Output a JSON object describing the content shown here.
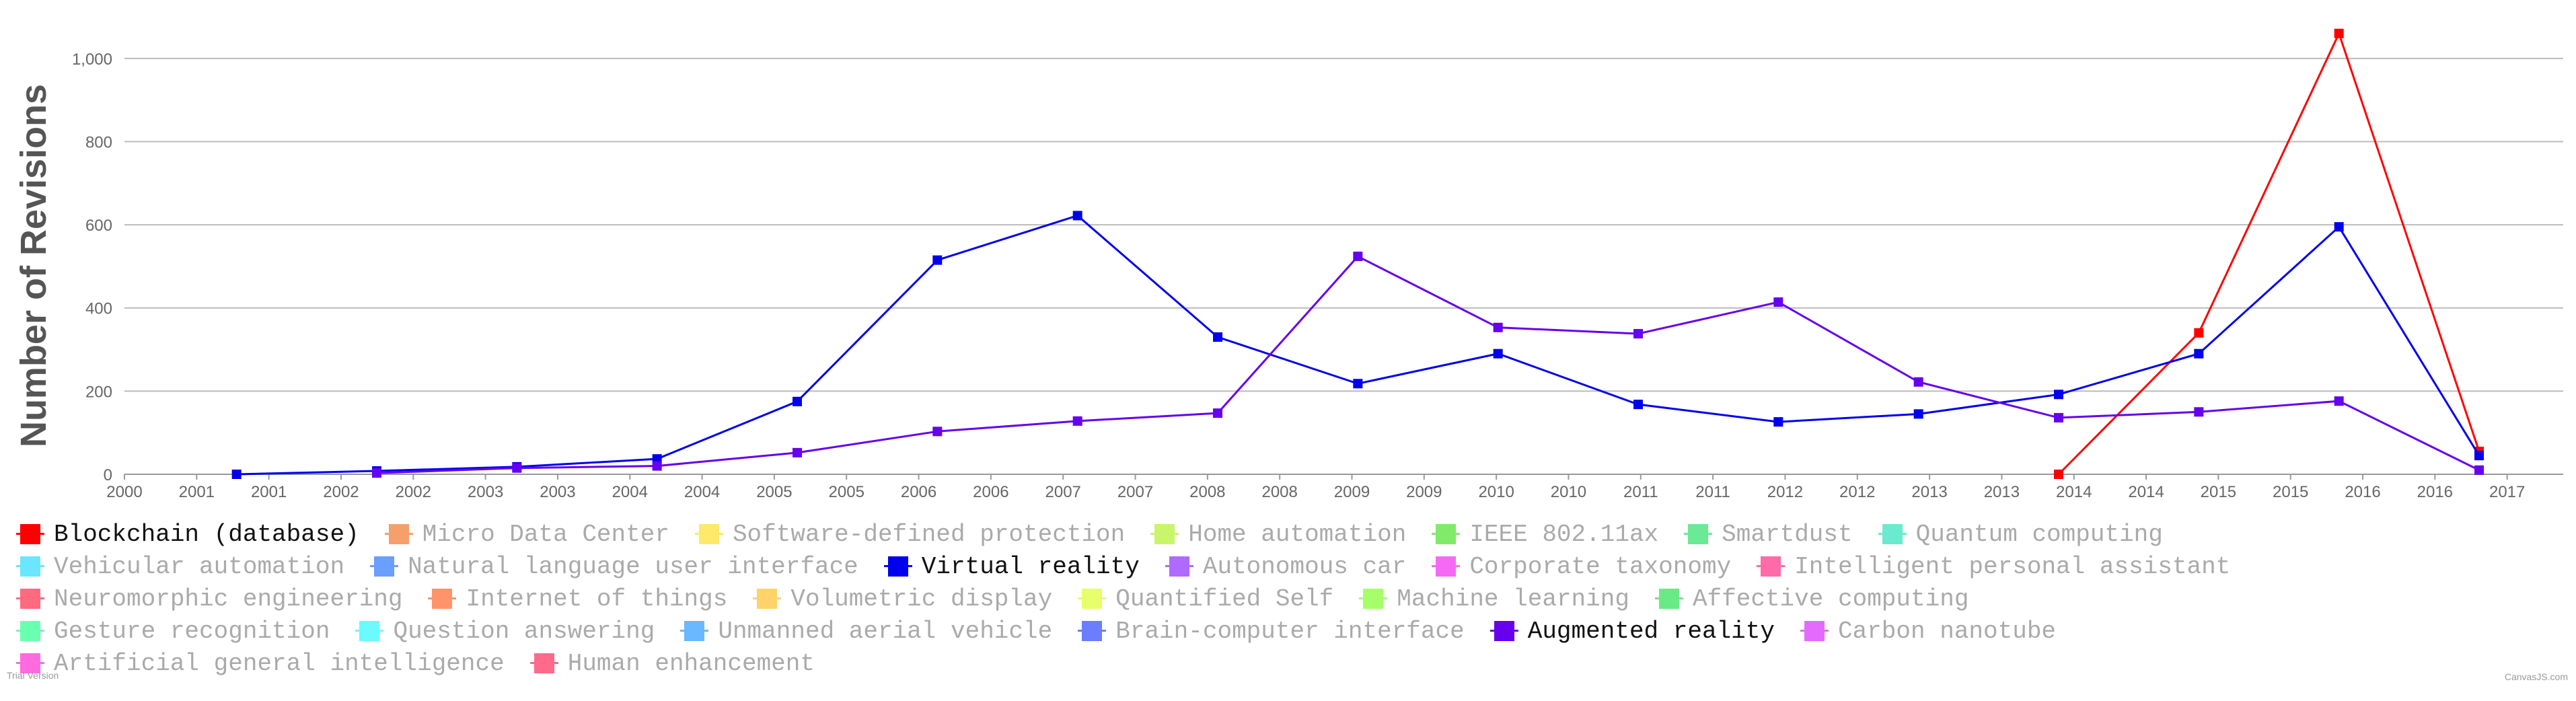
{
  "chart_data": {
    "type": "line",
    "ylabel": "Number of Revisions",
    "xlabel": "",
    "x_tick_labels": [
      "2000",
      "2001",
      "2001",
      "2002",
      "2002",
      "2003",
      "2003",
      "2004",
      "2004",
      "2005",
      "2005",
      "2006",
      "2006",
      "2007",
      "2007",
      "2008",
      "2008",
      "2009",
      "2009",
      "2010",
      "2010",
      "2011",
      "2011",
      "2012",
      "2012",
      "2013",
      "2013",
      "2014",
      "2014",
      "2015",
      "2015",
      "2016",
      "2016",
      "2017"
    ],
    "y_ticks": [
      0,
      200,
      400,
      600,
      800,
      1000
    ],
    "y_tick_labels": [
      "0",
      "200",
      "400",
      "600",
      "800",
      "1,000"
    ],
    "ylim": [
      0,
      1100
    ],
    "x_domain": [
      2000.0,
      2017.4
    ],
    "grid": true,
    "legend_position": "bottom",
    "series": [
      {
        "name": "Blockchain (database)",
        "color": "#ff0000",
        "points": [
          [
            2013.8,
            0
          ],
          [
            2014.8,
            340
          ],
          [
            2015.8,
            1060
          ],
          [
            2016.8,
            55
          ]
        ]
      },
      {
        "name": "Virtual reality",
        "color": "#0000ee",
        "points": [
          [
            2000.8,
            0
          ],
          [
            2001.8,
            8
          ],
          [
            2002.8,
            18
          ],
          [
            2003.8,
            37
          ],
          [
            2004.8,
            175
          ],
          [
            2005.8,
            515
          ],
          [
            2006.8,
            622
          ],
          [
            2007.8,
            330
          ],
          [
            2008.8,
            218
          ],
          [
            2009.8,
            290
          ],
          [
            2010.8,
            168
          ],
          [
            2011.8,
            126
          ],
          [
            2012.8,
            145
          ],
          [
            2013.8,
            192
          ],
          [
            2014.8,
            290
          ],
          [
            2015.8,
            595
          ],
          [
            2016.8,
            45
          ]
        ]
      },
      {
        "name": "Augmented reality",
        "color": "#6600ee",
        "points": [
          [
            2001.8,
            3
          ],
          [
            2002.8,
            15
          ],
          [
            2003.8,
            20
          ],
          [
            2004.8,
            52
          ],
          [
            2005.8,
            103
          ],
          [
            2006.8,
            128
          ],
          [
            2007.8,
            147
          ],
          [
            2008.8,
            524
          ],
          [
            2009.8,
            353
          ],
          [
            2010.8,
            338
          ],
          [
            2011.8,
            414
          ],
          [
            2012.8,
            222
          ],
          [
            2013.8,
            136
          ],
          [
            2014.8,
            150
          ],
          [
            2015.8,
            176
          ],
          [
            2016.8,
            10
          ]
        ]
      }
    ]
  },
  "legend": {
    "rows": [
      [
        {
          "label": "Blockchain (database)",
          "color": "#ff0000",
          "active": true
        },
        {
          "label": "Micro Data Center",
          "color": "#f5a06a",
          "active": false
        },
        {
          "label": "Software-defined protection",
          "color": "#ffe86a",
          "active": false
        },
        {
          "label": "Home automation",
          "color": "#c8f56a",
          "active": false
        },
        {
          "label": "IEEE 802.11ax",
          "color": "#82ea6a",
          "active": false
        },
        {
          "label": "Smartdust",
          "color": "#6aea96",
          "active": false
        },
        {
          "label": "Quantum computing",
          "color": "#6aeace",
          "active": false
        }
      ],
      [
        {
          "label": "Vehicular automation",
          "color": "#6ae6ff",
          "active": false
        },
        {
          "label": "Natural language user interface",
          "color": "#6a9eff",
          "active": false
        },
        {
          "label": "Virtual reality",
          "color": "#0000ee",
          "active": true
        },
        {
          "label": "Autonomous car",
          "color": "#b06aff",
          "active": false
        },
        {
          "label": "Corporate taxonomy",
          "color": "#f56af5",
          "active": false
        },
        {
          "label": "Intelligent personal assistant",
          "color": "#ff6aa8",
          "active": false
        }
      ],
      [
        {
          "label": "Neuromorphic engineering",
          "color": "#ff6a7e",
          "active": false
        },
        {
          "label": "Internet of things",
          "color": "#ff946a",
          "active": false
        },
        {
          "label": "Volumetric display",
          "color": "#ffd26a",
          "active": false
        },
        {
          "label": "Quantified Self",
          "color": "#e6ff6a",
          "active": false
        },
        {
          "label": "Machine learning",
          "color": "#a6ff6a",
          "active": false
        },
        {
          "label": "Affective computing",
          "color": "#6aea86",
          "active": false
        }
      ],
      [
        {
          "label": "Gesture recognition",
          "color": "#6affb0",
          "active": false
        },
        {
          "label": "Question answering",
          "color": "#6afaff",
          "active": false
        },
        {
          "label": "Unmanned aerial vehicle",
          "color": "#6ab8ff",
          "active": false
        },
        {
          "label": "Brain-computer interface",
          "color": "#6a7eff",
          "active": false
        },
        {
          "label": "Augmented reality",
          "color": "#6600ee",
          "active": true
        },
        {
          "label": "Carbon nanotube",
          "color": "#e46aff",
          "active": false
        }
      ],
      [
        {
          "label": "Artificial general intelligence",
          "color": "#ff6ae0",
          "active": false
        },
        {
          "label": "Human enhancement",
          "color": "#ff6a8a",
          "active": false
        }
      ]
    ]
  },
  "footer": {
    "left": "Trial Version",
    "right": "CanvasJS.com"
  }
}
